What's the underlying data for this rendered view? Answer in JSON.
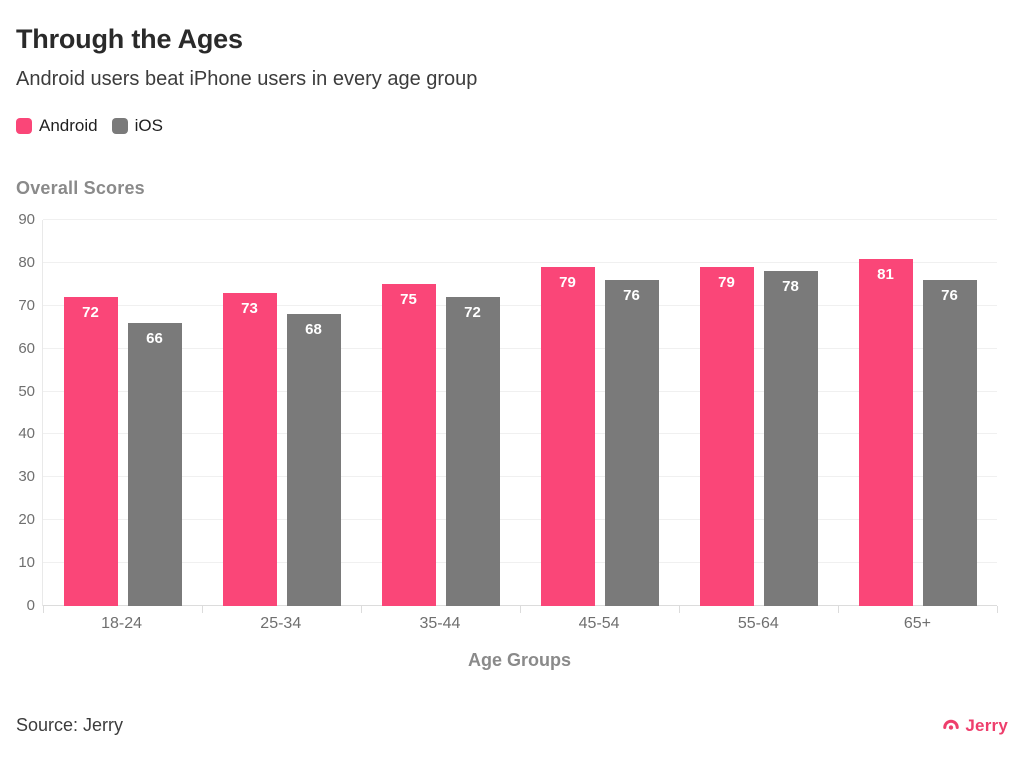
{
  "header": {
    "title": "Through the Ages",
    "subtitle": "Android users beat iPhone users in every age group"
  },
  "chart_data": {
    "type": "bar",
    "title": "Overall Scores",
    "categories": [
      "18-24",
      "25-34",
      "35-44",
      "45-54",
      "55-64",
      "65+"
    ],
    "series": [
      {
        "name": "Android",
        "color": "#FA4678",
        "values": [
          72,
          73,
          75,
          79,
          79,
          81
        ]
      },
      {
        "name": "iOS",
        "color": "#7A7A7A",
        "values": [
          66,
          68,
          72,
          76,
          78,
          76
        ]
      }
    ],
    "xlabel": "Age Groups",
    "ylabel": "",
    "ylim": [
      0,
      90
    ],
    "yticks": [
      0,
      10,
      20,
      30,
      40,
      50,
      60,
      70,
      80,
      90
    ],
    "grid": true,
    "legend_position": "top-left",
    "value_labels": "inside-top"
  },
  "footer": {
    "source": "Source: Jerry",
    "brand": "Jerry",
    "brand_icon": "jerry-arc-icon",
    "brand_color": "#EE3E6C"
  }
}
